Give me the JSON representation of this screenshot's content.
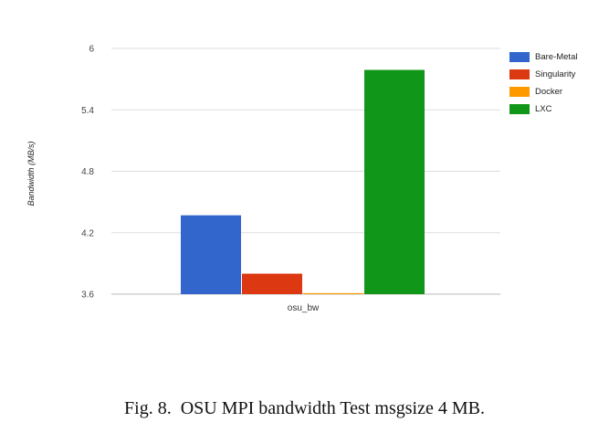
{
  "chart_data": {
    "type": "bar",
    "categories": [
      "osu_bw"
    ],
    "series": [
      {
        "name": "Bare-Metal",
        "values": [
          4.37
        ],
        "color": "#3366cc"
      },
      {
        "name": "Singularity",
        "values": [
          3.8
        ],
        "color": "#dc3912"
      },
      {
        "name": "Docker",
        "values": [
          3.61
        ],
        "color": "#ff9900"
      },
      {
        "name": "LXC",
        "values": [
          5.79
        ],
        "color": "#109618"
      }
    ],
    "ylabel": "Bandwidth (MB/s)",
    "ylim": [
      3.6,
      6
    ],
    "yticks": [
      "3.6",
      "4.2",
      "4.8",
      "5.4",
      "6"
    ],
    "grid": true,
    "legend_position": "right"
  },
  "caption": "Fig. 8.  OSU MPI bandwidth Test msgsize 4 MB."
}
